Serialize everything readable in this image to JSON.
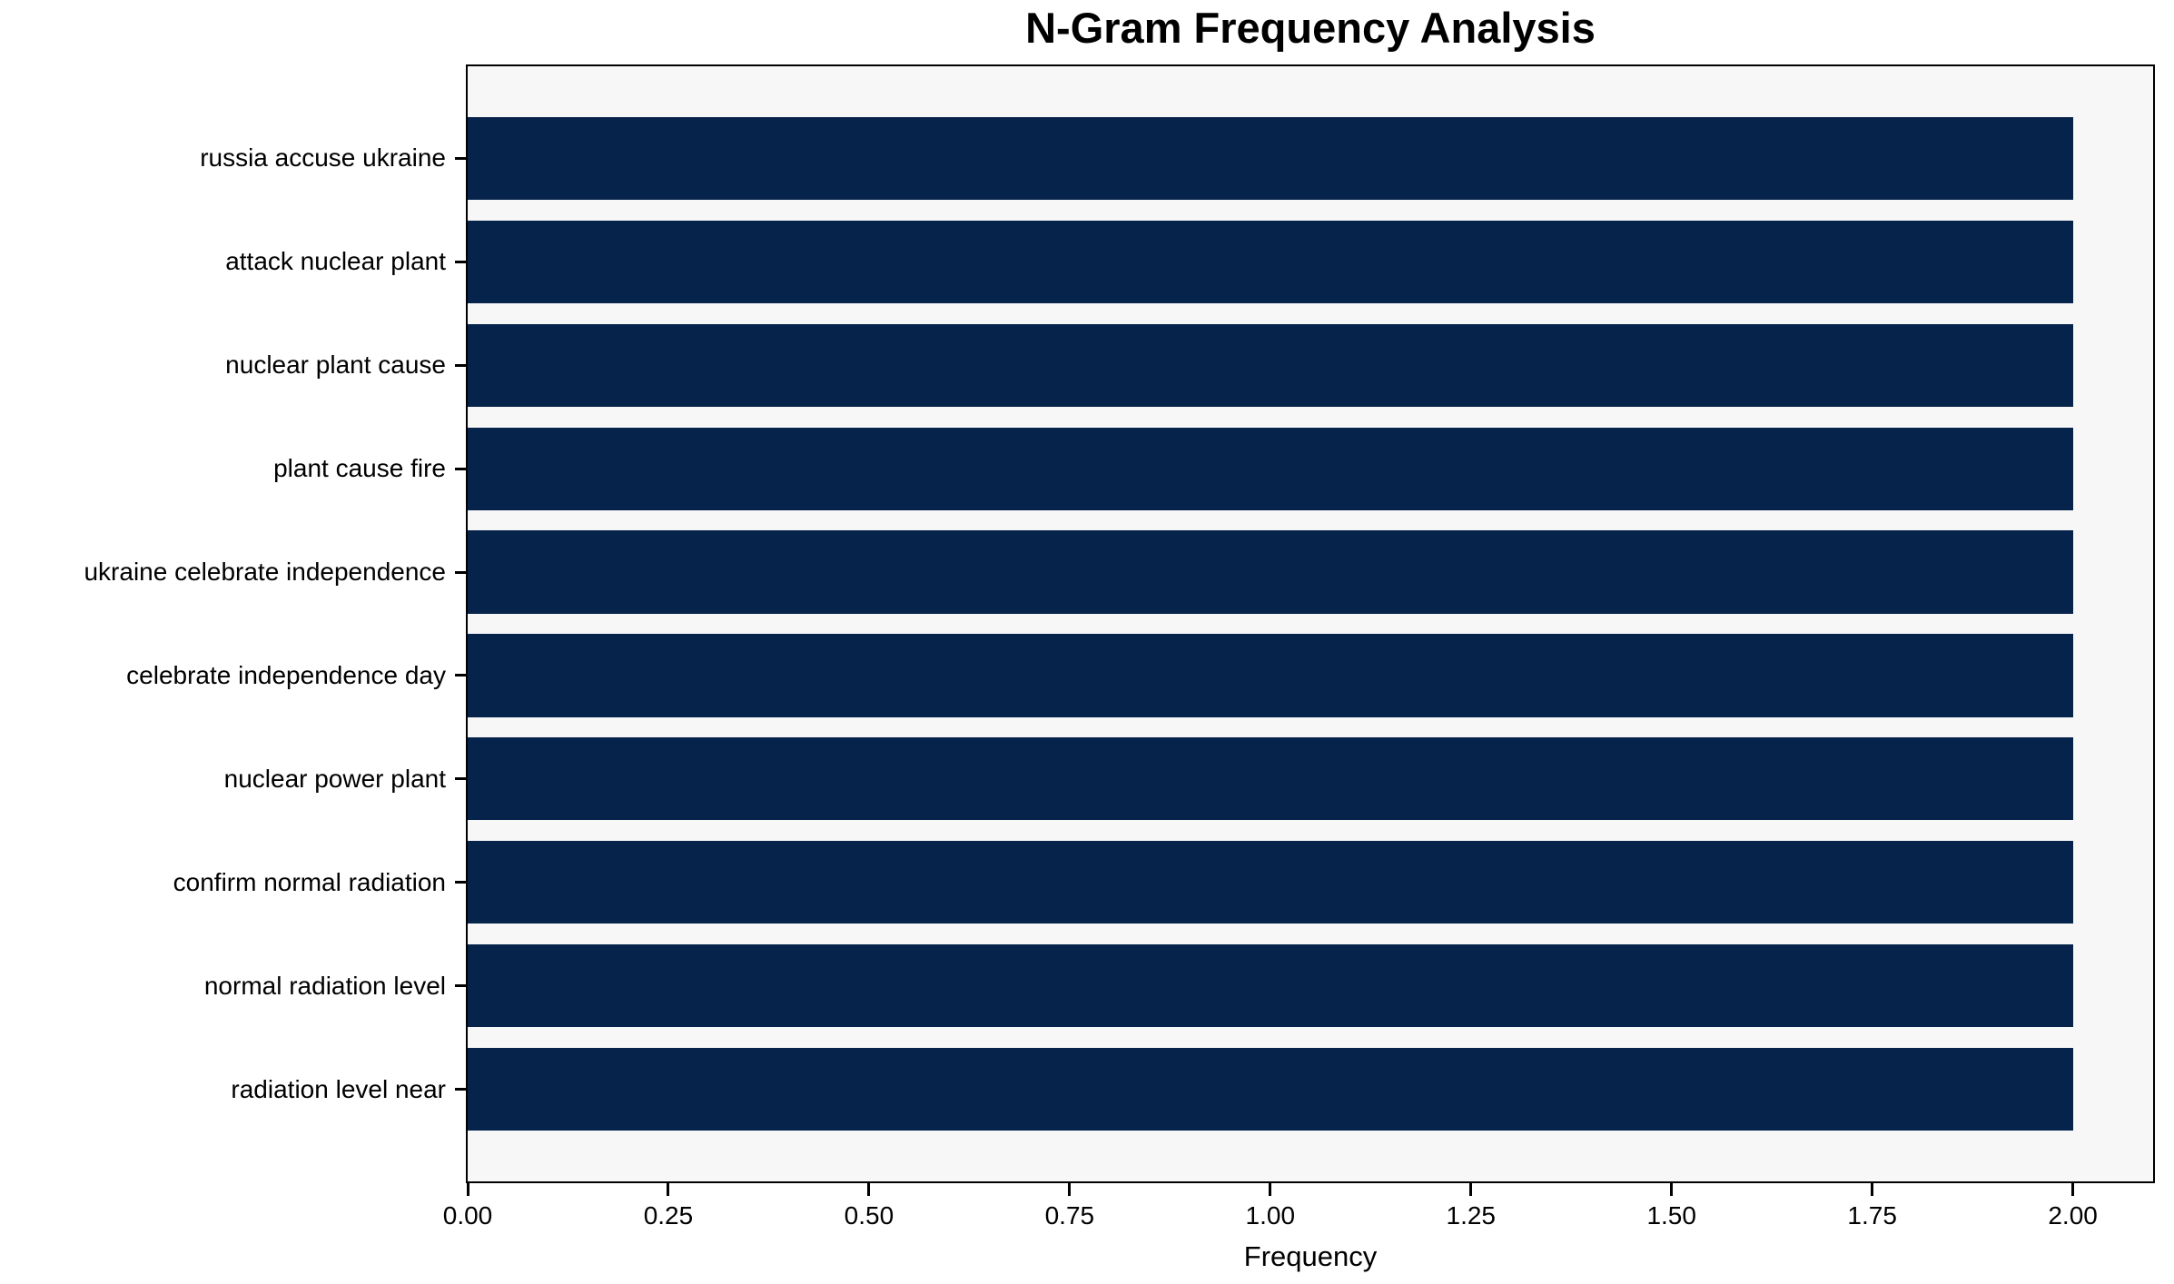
{
  "chart_data": {
    "type": "bar",
    "orientation": "horizontal",
    "title": "N-Gram Frequency Analysis",
    "xlabel": "Frequency",
    "ylabel": "",
    "categories": [
      "russia accuse ukraine",
      "attack nuclear plant",
      "nuclear plant cause",
      "plant cause fire",
      "ukraine celebrate independence",
      "celebrate independence day",
      "nuclear power plant",
      "confirm normal radiation",
      "normal radiation level",
      "radiation level near"
    ],
    "values": [
      2,
      2,
      2,
      2,
      2,
      2,
      2,
      2,
      2,
      2
    ],
    "xlim": [
      0,
      2.1
    ],
    "xticks": [
      0,
      0.25,
      0.5,
      0.75,
      1.0,
      1.25,
      1.5,
      1.75,
      2.0
    ],
    "xtick_labels": [
      "0.00",
      "0.25",
      "0.50",
      "0.75",
      "1.00",
      "1.25",
      "1.50",
      "1.75",
      "2.00"
    ],
    "bar_height_fraction": 0.8,
    "grid": false,
    "legend": "none",
    "colors": {
      "bar": "#05234b",
      "plot_background": "#f7f7f7",
      "figure_background": "#ffffff",
      "axis": "#000000",
      "text": "#000000"
    }
  }
}
